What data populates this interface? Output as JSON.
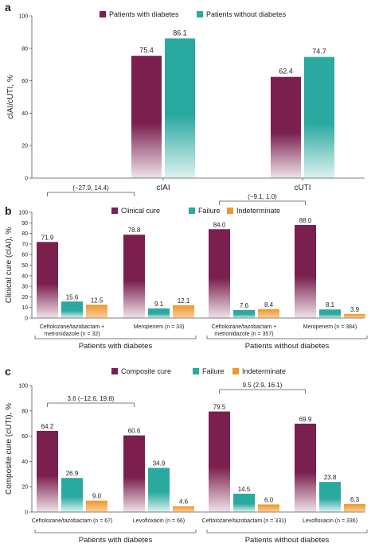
{
  "colors": {
    "diabetes": "#7b1f4e",
    "no_diabetes": "#2aa9a0",
    "clinical_cure": "#7b1f4e",
    "failure": "#2aa9a0",
    "indeterminate": "#f0962a",
    "axis": "#555555"
  },
  "chart_data": [
    {
      "panel_label": "a",
      "type": "bar",
      "ylabel": "cIAI/cUTI, %",
      "ylim": [
        0,
        100
      ],
      "yticks": [
        "0",
        "20",
        "40",
        "60",
        "80",
        "100"
      ],
      "categories": [
        "cIAI",
        "cUTI"
      ],
      "legend": [
        "Patients with diabetes",
        "Patients without diabetes"
      ],
      "series": [
        {
          "name": "Patients with diabetes",
          "values": [
            75.4,
            62.4
          ],
          "labels": [
            "75.4",
            "62.4"
          ]
        },
        {
          "name": "Patients without diabetes",
          "values": [
            86.1,
            74.7
          ],
          "labels": [
            "86.1",
            "74.7"
          ]
        }
      ]
    },
    {
      "panel_label": "b",
      "type": "bar",
      "ylabel": "Clinical cure (cIAI), %",
      "ylim": [
        0,
        100
      ],
      "yticks": [
        "0",
        "10",
        "20",
        "30",
        "40",
        "50",
        "60",
        "70",
        "80",
        "90",
        "100"
      ],
      "legend": [
        "Clinical cure",
        "Failure",
        "Indeterminate"
      ],
      "groups": [
        {
          "label_line1": "Ceftolozane/tazobactam +",
          "label_line2": "metronidazole (n = 32)",
          "values": [
            71.9,
            15.6,
            12.5
          ],
          "labels": [
            "71.9",
            "15.6",
            "12.5"
          ]
        },
        {
          "label_line1": "Meropenem (n = 33)",
          "label_line2": "",
          "values": [
            78.8,
            9.1,
            12.1
          ],
          "labels": [
            "78.8",
            "9.1",
            "12.1"
          ]
        },
        {
          "label_line1": "Ceftolozane/tazobactam +",
          "label_line2": "metronidazole (n = 357)",
          "values": [
            84.0,
            7.6,
            8.4
          ],
          "labels": [
            "84.0",
            "7.6",
            "8.4"
          ]
        },
        {
          "label_line1": "Meropenem (n = 384)",
          "label_line2": "",
          "values": [
            88.0,
            8.1,
            3.9
          ],
          "labels": [
            "88.0",
            "8.1",
            "3.9"
          ]
        }
      ],
      "brackets": [
        "(−27.9, 14.4)",
        "(−9.1, 1.0)"
      ],
      "populations": [
        "Patients with diabetes",
        "Patients without diabetes"
      ]
    },
    {
      "panel_label": "c",
      "type": "bar",
      "ylabel": "Composite cure (cUTI), %",
      "ylim": [
        0,
        100
      ],
      "yticks": [
        "0",
        "20",
        "40",
        "60",
        "80",
        "100"
      ],
      "legend": [
        "Composite cure",
        "Failure",
        "Indeterminate"
      ],
      "groups": [
        {
          "label_line1": "Ceftolozane/tazobactam (n = 67)",
          "label_line2": "",
          "values": [
            64.2,
            26.9,
            9.0
          ],
          "labels": [
            "64.2",
            "26.9",
            "9.0"
          ]
        },
        {
          "label_line1": "Levofloxacin (n = 66)",
          "label_line2": "",
          "values": [
            60.6,
            34.9,
            4.6
          ],
          "labels": [
            "60.6",
            "34.9",
            "4.6"
          ]
        },
        {
          "label_line1": "Ceftolozane/tazobactam (n = 331)",
          "label_line2": "",
          "values": [
            79.5,
            14.5,
            6.0
          ],
          "labels": [
            "79.5",
            "14.5",
            "6.0"
          ]
        },
        {
          "label_line1": "Levofloxacin (n = 336)",
          "label_line2": "",
          "values": [
            69.9,
            23.8,
            6.3
          ],
          "labels": [
            "69.9",
            "23.8",
            "6.3"
          ]
        }
      ],
      "brackets": [
        "3.6 (−12.6, 19.8)",
        "9.5 (2.9, 16.1)"
      ],
      "populations": [
        "Patients with diabetes",
        "Patients without diabetes"
      ]
    }
  ]
}
